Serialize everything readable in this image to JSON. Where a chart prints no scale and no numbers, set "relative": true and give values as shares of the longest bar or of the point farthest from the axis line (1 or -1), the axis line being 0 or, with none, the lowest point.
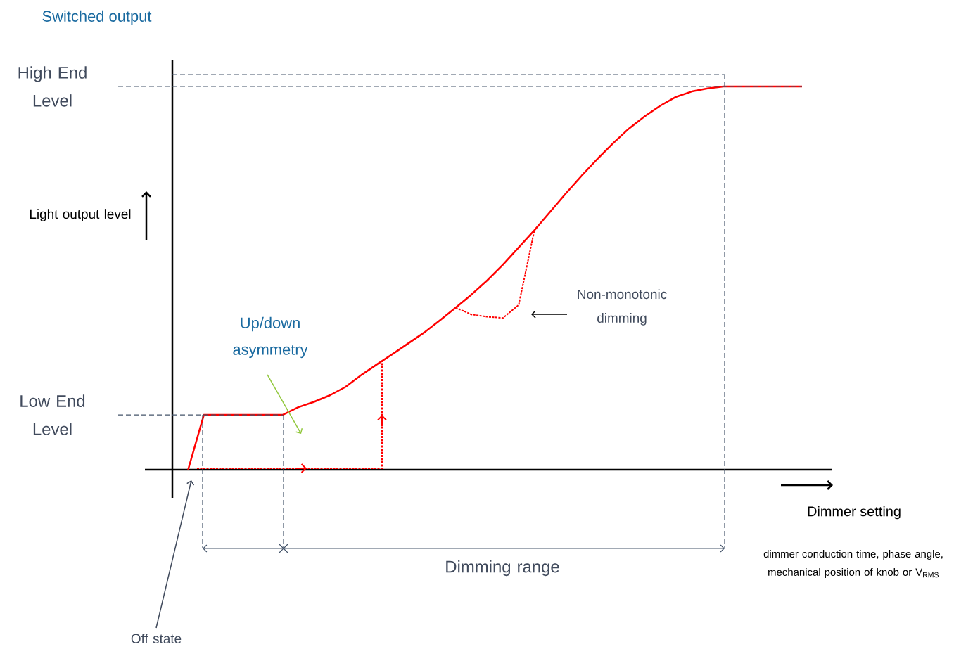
{
  "chart_data": {
    "type": "line",
    "relative": true,
    "title": "Switched output",
    "xlabel": "Dimmer setting",
    "ylabel": "Light output level",
    "categories": [
      null,
      null,
      null,
      null,
      null,
      null,
      null,
      null,
      null,
      null,
      null,
      null,
      null,
      null,
      null,
      null,
      null,
      null,
      null,
      null,
      null,
      null,
      null,
      null,
      null,
      null,
      null,
      null,
      null,
      null,
      null,
      null,
      null,
      null,
      null,
      null,
      null,
      null,
      null,
      null,
      null
    ],
    "series": [
      {
        "color": "#ff0000",
        "line_style": "solid",
        "values": [
          null,
          0,
          0.143,
          0.143,
          0.143,
          0.143,
          0.143,
          0.143,
          0.163,
          0.177,
          0.194,
          0.216,
          0.247,
          0.275,
          0.302,
          0.33,
          0.358,
          0.39,
          0.423,
          0.457,
          0.494,
          0.535,
          0.58,
          0.625,
          0.673,
          0.721,
          0.767,
          0.811,
          0.852,
          0.89,
          0.922,
          0.95,
          0.973,
          0.987,
          0.995,
          1,
          1,
          1,
          1,
          1,
          1
        ]
      },
      {
        "color": "#ff0000",
        "line_style": "dotted",
        "values": [
          null,
          null,
          null,
          null,
          null,
          null,
          null,
          null,
          null,
          null,
          null,
          null,
          null,
          null,
          null,
          null,
          null,
          null,
          0.423,
          0.405,
          0.399,
          0.396,
          0.43,
          0.625,
          null,
          null,
          null,
          null,
          null,
          null,
          null,
          null,
          null,
          null,
          null,
          null,
          null,
          null,
          null,
          null,
          null
        ]
      }
    ],
    "ref_lines": [
      {
        "axis": "y",
        "value": 1,
        "label": "High End Level",
        "color": "#44546a",
        "line_style": "dashed"
      },
      {
        "axis": "y",
        "value": 0.143,
        "label": "Low End Level",
        "color": "#44546a",
        "line_style": "dashed"
      }
    ],
    "annotations": [
      "Up/down asymmetry",
      "Non-monotonic dimming",
      "Off state",
      "Dimming range",
      "dimmer conduction time, phase angle, mechanical position of knob or V$_{RMS}$"
    ]
  }
}
